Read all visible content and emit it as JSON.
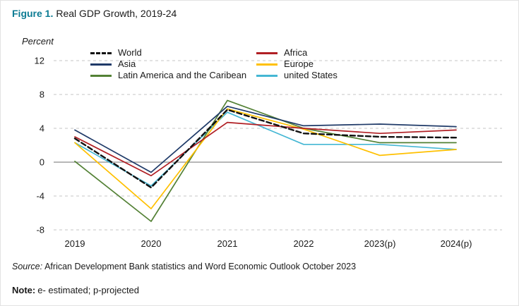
{
  "figure": {
    "label": "Figure 1.",
    "title": "Real GDP Growth, 2019-24",
    "y_axis_title": "Percent"
  },
  "source": {
    "prefix": "Source:",
    "text": "African Development Bank statistics and Word Economic Outlook October 2023"
  },
  "note": {
    "prefix": "Note:",
    "text": "e- estimated; p-projected"
  },
  "colors": {
    "figure_label_accent": "#0c7b93",
    "gridline": "#c4c4c4",
    "zero_line": "#8c8c8c"
  },
  "chart_data": {
    "type": "line",
    "title": "Real GDP Growth, 2019-24",
    "ylabel": "Percent",
    "ylim": [
      -8,
      12
    ],
    "yticks": [
      12,
      8,
      4,
      0,
      -4,
      -8
    ],
    "grid": "horizontal-dashed",
    "legend_position": "top-inside",
    "categories": [
      "2019",
      "2020",
      "2021",
      "2022",
      "2023(p)",
      "2024(p)"
    ],
    "series": [
      {
        "name": "World",
        "color": "#111111",
        "dash": "7,4",
        "values": [
          2.8,
          -3.0,
          6.2,
          3.4,
          3.0,
          2.9
        ]
      },
      {
        "name": "Africa",
        "color": "#b01f24",
        "values": [
          3.0,
          -1.6,
          4.7,
          4.0,
          3.4,
          3.8
        ]
      },
      {
        "name": "Asia",
        "color": "#1f3a68",
        "values": [
          3.8,
          -1.2,
          6.6,
          4.3,
          4.5,
          4.2
        ]
      },
      {
        "name": "Europe",
        "color": "#ffc000",
        "values": [
          2.3,
          -5.5,
          6.3,
          3.9,
          0.8,
          1.5
        ]
      },
      {
        "name": "Latin America and the Caribean",
        "color": "#538135",
        "values": [
          0.1,
          -7.0,
          7.3,
          4.0,
          2.3,
          2.3
        ]
      },
      {
        "name": "united States",
        "color": "#45b7d4",
        "values": [
          2.3,
          -2.8,
          5.9,
          2.1,
          2.1,
          1.5
        ]
      }
    ],
    "legend_columns": [
      [
        "World",
        "Asia",
        "Latin America and the Caribean"
      ],
      [
        "Africa",
        "Europe",
        "united States"
      ]
    ]
  }
}
